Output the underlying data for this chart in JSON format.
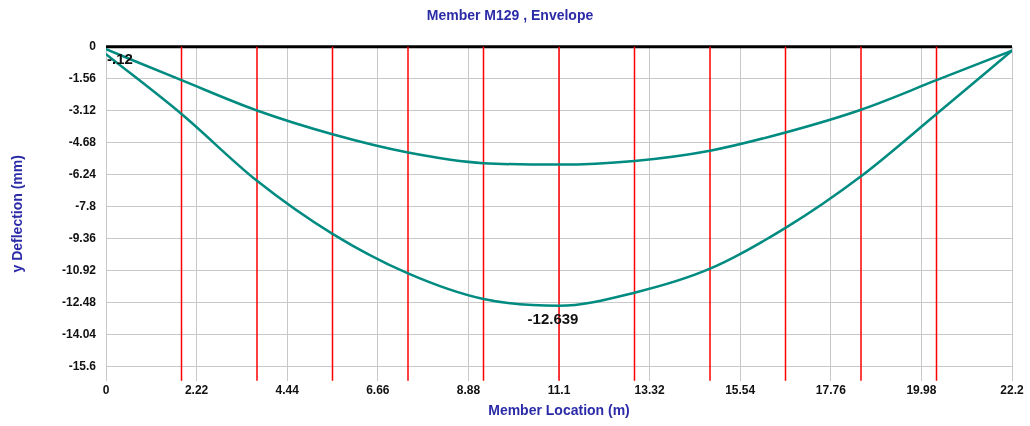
{
  "chart_data": {
    "type": "line",
    "title": "Member M129 , Envelope",
    "xlabel": "Member Location (m)",
    "ylabel": "y Deflection (mm)",
    "x": [
      0,
      1.85,
      3.7,
      5.55,
      7.4,
      9.25,
      11.1,
      12.95,
      14.8,
      16.65,
      18.5,
      20.35,
      22.2
    ],
    "series": [
      {
        "color": "#008b80",
        "values": [
          -0.12,
          -1.63,
          -3.11,
          -4.27,
          -5.16,
          -5.68,
          -5.75,
          -5.57,
          -5.07,
          -4.18,
          -3.07,
          -1.63,
          -0.19
        ]
      },
      {
        "color": "#008b80",
        "values": [
          -0.36,
          -3.28,
          -6.54,
          -9.13,
          -11.06,
          -12.31,
          -12.639,
          -12.0,
          -10.83,
          -8.84,
          -6.32,
          -3.28,
          -0.19
        ]
      }
    ],
    "xlim": [
      0,
      22.2
    ],
    "xticks": [
      0,
      2.22,
      4.44,
      6.66,
      8.88,
      11.1,
      13.32,
      15.54,
      17.76,
      19.98,
      22.2
    ],
    "ylim": [
      -16.3,
      0
    ],
    "yticks": [
      0,
      -1.56,
      -3.12,
      -4.68,
      -6.24,
      -7.8,
      -9.36,
      -10.92,
      -12.48,
      -14.04,
      -15.6
    ],
    "grid": true,
    "legend": false,
    "marker": "none",
    "line_style": "solid",
    "ref_lines": [
      {
        "axis": "y",
        "value": 0,
        "color": "#000000"
      },
      {
        "axis": "x",
        "value": 1.85,
        "color": "#ff0000"
      },
      {
        "axis": "x",
        "value": 3.7,
        "color": "#ff0000"
      },
      {
        "axis": "x",
        "value": 5.55,
        "color": "#ff0000"
      },
      {
        "axis": "x",
        "value": 7.4,
        "color": "#ff0000"
      },
      {
        "axis": "x",
        "value": 9.25,
        "color": "#ff0000"
      },
      {
        "axis": "x",
        "value": 11.1,
        "color": "#ff0000"
      },
      {
        "axis": "x",
        "value": 12.95,
        "color": "#ff0000"
      },
      {
        "axis": "x",
        "value": 14.8,
        "color": "#ff0000"
      },
      {
        "axis": "x",
        "value": 16.65,
        "color": "#ff0000"
      },
      {
        "axis": "x",
        "value": 18.5,
        "color": "#ff0000"
      },
      {
        "axis": "x",
        "value": 20.35,
        "color": "#ff0000"
      }
    ],
    "annotations": [
      {
        "text": "-.12",
        "x": 0,
        "y": -0.12
      },
      {
        "text": "-12.639",
        "x": 11.1,
        "y": -12.639
      }
    ]
  }
}
